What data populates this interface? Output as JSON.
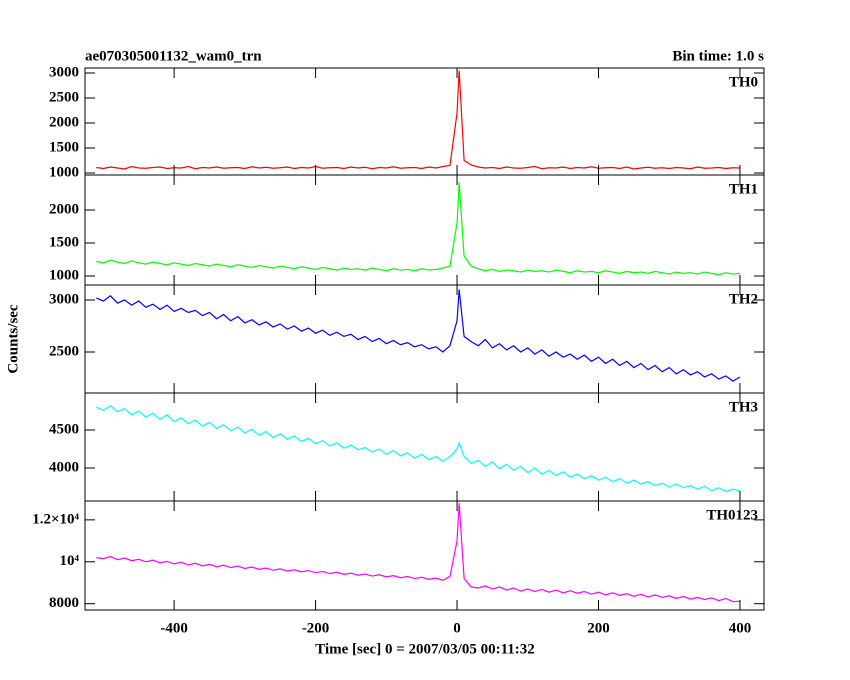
{
  "figure": {
    "title": "ae070305001132_wam0_trn",
    "bin_time": "Bin time: 1.0 s",
    "x_label": "Time [sec] 0 = 2007/03/05 00:11:32",
    "y_label": "Counts/sec"
  },
  "chart_data": [
    {
      "type": "line",
      "x": [
        -510,
        -500,
        -490,
        -480,
        -470,
        -460,
        -450,
        -440,
        -430,
        -420,
        -410,
        -400,
        -390,
        -380,
        -370,
        -360,
        -350,
        -340,
        -330,
        -320,
        -310,
        -300,
        -290,
        -280,
        -270,
        -260,
        -250,
        -240,
        -230,
        -220,
        -210,
        -200,
        -190,
        -180,
        -170,
        -160,
        -150,
        -140,
        -130,
        -120,
        -110,
        -100,
        -90,
        -80,
        -70,
        -60,
        -50,
        -40,
        -30,
        -20,
        -10,
        0,
        3,
        10,
        20,
        30,
        40,
        50,
        60,
        70,
        80,
        90,
        100,
        110,
        120,
        130,
        140,
        150,
        160,
        170,
        180,
        190,
        200,
        210,
        220,
        230,
        240,
        250,
        260,
        270,
        280,
        290,
        300,
        310,
        320,
        330,
        340,
        350,
        360,
        370,
        380,
        390,
        400
      ],
      "series": [
        {
          "name": "TH0",
          "color": "#ff0000",
          "values": [
            1110,
            1090,
            1120,
            1100,
            1080,
            1130,
            1100,
            1095,
            1110,
            1120,
            1090,
            1105,
            1100,
            1130,
            1085,
            1110,
            1100,
            1120,
            1095,
            1105,
            1110,
            1090,
            1125,
            1100,
            1115,
            1095,
            1105,
            1120,
            1090,
            1110,
            1100,
            1130,
            1095,
            1105,
            1110,
            1090,
            1120,
            1100,
            1115,
            1085,
            1110,
            1100,
            1125,
            1095,
            1105,
            1110,
            1090,
            1120,
            1100,
            1130,
            1150,
            2200,
            3050,
            1250,
            1160,
            1120,
            1100,
            1110,
            1090,
            1120,
            1100,
            1095,
            1110,
            1130,
            1085,
            1105,
            1100,
            1120,
            1090,
            1110,
            1100,
            1125,
            1095,
            1105,
            1110,
            1090,
            1120,
            1080,
            1100,
            1115,
            1095,
            1105,
            1090,
            1110,
            1100,
            1085,
            1120,
            1095,
            1100,
            1110,
            1090,
            1105,
            1100
          ]
        }
      ],
      "xlim": [
        -526,
        434
      ],
      "xticks": [
        -400,
        -200,
        0,
        200,
        400
      ],
      "ylim": [
        960,
        3100
      ],
      "yticks": [
        1000,
        1500,
        2000,
        2500,
        3000
      ]
    },
    {
      "type": "line",
      "x": [
        -510,
        -500,
        -490,
        -480,
        -470,
        -460,
        -450,
        -440,
        -430,
        -420,
        -410,
        -400,
        -390,
        -380,
        -370,
        -360,
        -350,
        -340,
        -330,
        -320,
        -310,
        -300,
        -290,
        -280,
        -270,
        -260,
        -250,
        -240,
        -230,
        -220,
        -210,
        -200,
        -190,
        -180,
        -170,
        -160,
        -150,
        -140,
        -130,
        -120,
        -110,
        -100,
        -90,
        -80,
        -70,
        -60,
        -50,
        -40,
        -30,
        -20,
        -10,
        0,
        3,
        10,
        20,
        30,
        40,
        50,
        60,
        70,
        80,
        90,
        100,
        110,
        120,
        130,
        140,
        150,
        160,
        170,
        180,
        190,
        200,
        210,
        220,
        230,
        240,
        250,
        260,
        270,
        280,
        290,
        300,
        310,
        320,
        330,
        340,
        350,
        360,
        370,
        380,
        390,
        400
      ],
      "series": [
        {
          "name": "TH1",
          "color": "#00ff00",
          "values": [
            1220,
            1200,
            1240,
            1210,
            1190,
            1230,
            1200,
            1180,
            1210,
            1190,
            1170,
            1200,
            1180,
            1160,
            1190,
            1170,
            1150,
            1180,
            1160,
            1140,
            1170,
            1150,
            1130,
            1160,
            1140,
            1120,
            1150,
            1130,
            1110,
            1140,
            1120,
            1100,
            1130,
            1110,
            1090,
            1120,
            1100,
            1110,
            1090,
            1120,
            1100,
            1080,
            1110,
            1090,
            1100,
            1080,
            1110,
            1090,
            1100,
            1120,
            1150,
            1800,
            2420,
            1300,
            1150,
            1110,
            1080,
            1100,
            1070,
            1090,
            1080,
            1060,
            1090,
            1070,
            1080,
            1060,
            1090,
            1070,
            1050,
            1080,
            1060,
            1070,
            1050,
            1080,
            1060,
            1040,
            1070,
            1050,
            1060,
            1040,
            1070,
            1050,
            1030,
            1060,
            1040,
            1050,
            1030,
            1060,
            1040,
            1020,
            1050,
            1030,
            1040
          ]
        }
      ],
      "xlim": [
        -526,
        434
      ],
      "xticks": [
        -400,
        -200,
        0,
        200,
        400
      ],
      "ylim": [
        864,
        2530
      ],
      "yticks": [
        1000,
        1500,
        2000
      ]
    },
    {
      "type": "line",
      "x": [
        -510,
        -500,
        -490,
        -480,
        -470,
        -460,
        -450,
        -440,
        -430,
        -420,
        -410,
        -400,
        -390,
        -380,
        -370,
        -360,
        -350,
        -340,
        -330,
        -320,
        -310,
        -300,
        -290,
        -280,
        -270,
        -260,
        -250,
        -240,
        -230,
        -220,
        -210,
        -200,
        -190,
        -180,
        -170,
        -160,
        -150,
        -140,
        -130,
        -120,
        -110,
        -100,
        -90,
        -80,
        -70,
        -60,
        -50,
        -40,
        -30,
        -20,
        -10,
        0,
        3,
        10,
        20,
        30,
        40,
        50,
        60,
        70,
        80,
        90,
        100,
        110,
        120,
        130,
        140,
        150,
        160,
        170,
        180,
        190,
        200,
        210,
        220,
        230,
        240,
        250,
        260,
        270,
        280,
        290,
        300,
        310,
        320,
        330,
        340,
        350,
        360,
        370,
        380,
        390,
        400
      ],
      "series": [
        {
          "name": "TH2",
          "color": "#0000ff",
          "values": [
            3020,
            2990,
            3040,
            2970,
            3000,
            2950,
            2990,
            2930,
            2960,
            2910,
            2950,
            2890,
            2920,
            2880,
            2900,
            2850,
            2880,
            2820,
            2860,
            2800,
            2840,
            2780,
            2810,
            2760,
            2790,
            2740,
            2770,
            2720,
            2750,
            2700,
            2730,
            2680,
            2710,
            2660,
            2690,
            2650,
            2670,
            2620,
            2650,
            2600,
            2630,
            2580,
            2610,
            2570,
            2590,
            2550,
            2570,
            2530,
            2550,
            2500,
            2560,
            2800,
            3100,
            2650,
            2600,
            2560,
            2620,
            2540,
            2580,
            2520,
            2560,
            2500,
            2540,
            2480,
            2520,
            2460,
            2500,
            2450,
            2480,
            2430,
            2470,
            2410,
            2450,
            2390,
            2430,
            2370,
            2410,
            2350,
            2390,
            2330,
            2370,
            2310,
            2350,
            2290,
            2330,
            2280,
            2310,
            2260,
            2290,
            2240,
            2270,
            2220,
            2260
          ]
        }
      ],
      "xlim": [
        -526,
        434
      ],
      "xticks": [
        -400,
        -200,
        0,
        200,
        400
      ],
      "ylim": [
        2106,
        3144
      ],
      "yticks": [
        2500,
        3000
      ]
    },
    {
      "type": "line",
      "x": [
        -510,
        -500,
        -490,
        -480,
        -470,
        -460,
        -450,
        -440,
        -430,
        -420,
        -410,
        -400,
        -390,
        -380,
        -370,
        -360,
        -350,
        -340,
        -330,
        -320,
        -310,
        -300,
        -290,
        -280,
        -270,
        -260,
        -250,
        -240,
        -230,
        -220,
        -210,
        -200,
        -190,
        -180,
        -170,
        -160,
        -150,
        -140,
        -130,
        -120,
        -110,
        -100,
        -90,
        -80,
        -70,
        -60,
        -50,
        -40,
        -30,
        -20,
        -10,
        0,
        3,
        10,
        20,
        30,
        40,
        50,
        60,
        70,
        80,
        90,
        100,
        110,
        120,
        130,
        140,
        150,
        160,
        170,
        180,
        190,
        200,
        210,
        220,
        230,
        240,
        250,
        260,
        270,
        280,
        290,
        300,
        310,
        320,
        330,
        340,
        350,
        360,
        370,
        380,
        390,
        400
      ],
      "series": [
        {
          "name": "TH3",
          "color": "#00ffff",
          "values": [
            4800,
            4760,
            4820,
            4740,
            4780,
            4700,
            4750,
            4670,
            4720,
            4640,
            4700,
            4610,
            4660,
            4580,
            4630,
            4550,
            4600,
            4520,
            4570,
            4490,
            4540,
            4460,
            4510,
            4430,
            4480,
            4400,
            4450,
            4380,
            4420,
            4350,
            4390,
            4320,
            4360,
            4290,
            4330,
            4260,
            4300,
            4240,
            4270,
            4210,
            4250,
            4180,
            4230,
            4160,
            4200,
            4130,
            4180,
            4110,
            4150,
            4090,
            4150,
            4250,
            4330,
            4150,
            4060,
            4100,
            4020,
            4080,
            3990,
            4050,
            3970,
            4020,
            3940,
            4000,
            3920,
            3970,
            3900,
            3950,
            3880,
            3920,
            3860,
            3900,
            3840,
            3880,
            3820,
            3860,
            3800,
            3840,
            3790,
            3820,
            3770,
            3800,
            3750,
            3790,
            3740,
            3770,
            3720,
            3760,
            3700,
            3740,
            3690,
            3720,
            3700
          ]
        }
      ],
      "xlim": [
        -526,
        434
      ],
      "xticks": [
        -400,
        -200,
        0,
        200,
        400
      ],
      "ylim": [
        3566,
        4987
      ],
      "yticks": [
        4000,
        4500
      ]
    },
    {
      "type": "line",
      "x": [
        -510,
        -500,
        -490,
        -480,
        -470,
        -460,
        -450,
        -440,
        -430,
        -420,
        -410,
        -400,
        -390,
        -380,
        -370,
        -360,
        -350,
        -340,
        -330,
        -320,
        -310,
        -300,
        -290,
        -280,
        -270,
        -260,
        -250,
        -240,
        -230,
        -220,
        -210,
        -200,
        -190,
        -180,
        -170,
        -160,
        -150,
        -140,
        -130,
        -120,
        -110,
        -100,
        -90,
        -80,
        -70,
        -60,
        -50,
        -40,
        -30,
        -20,
        -10,
        0,
        3,
        10,
        20,
        30,
        40,
        50,
        60,
        70,
        80,
        90,
        100,
        110,
        120,
        130,
        140,
        150,
        160,
        170,
        180,
        190,
        200,
        210,
        220,
        230,
        240,
        250,
        260,
        270,
        280,
        290,
        300,
        310,
        320,
        330,
        340,
        350,
        360,
        370,
        380,
        390,
        400
      ],
      "series": [
        {
          "name": "TH0123",
          "color": "#ff00ff",
          "values": [
            10200,
            10150,
            10250,
            10100,
            10180,
            10050,
            10120,
            10000,
            10080,
            9950,
            10020,
            9900,
            9980,
            9850,
            9930,
            9800,
            9880,
            9760,
            9840,
            9720,
            9800,
            9680,
            9750,
            9640,
            9700,
            9600,
            9660,
            9560,
            9620,
            9520,
            9580,
            9480,
            9540,
            9440,
            9500,
            9400,
            9460,
            9360,
            9420,
            9320,
            9380,
            9280,
            9340,
            9240,
            9300,
            9200,
            9260,
            9160,
            9220,
            9120,
            9300,
            11000,
            12800,
            9200,
            8800,
            8750,
            8850,
            8700,
            8800,
            8650,
            8750,
            8600,
            8700,
            8580,
            8680,
            8550,
            8650,
            8520,
            8620,
            8500,
            8580,
            8450,
            8550,
            8420,
            8520,
            8400,
            8480,
            8350,
            8450,
            8320,
            8420,
            8300,
            8380,
            8250,
            8350,
            8220,
            8300,
            8200,
            8280,
            8150,
            8250,
            8100,
            8120
          ]
        }
      ],
      "xlim": [
        -526,
        434
      ],
      "xticks": [
        -400,
        -200,
        0,
        200,
        400
      ],
      "ylim": [
        7700,
        12900
      ],
      "yticks": [
        {
          "value": 12000,
          "label": "1.2×10⁴"
        },
        {
          "value": 10000,
          "label": "10⁴"
        },
        8000
      ]
    }
  ]
}
